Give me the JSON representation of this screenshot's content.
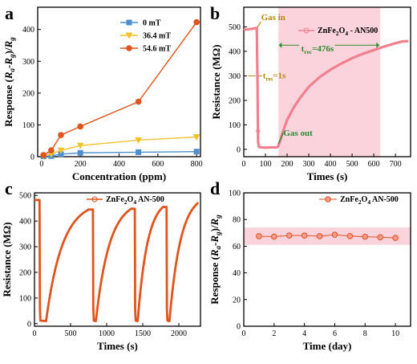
{
  "chart_data": [
    {
      "panel": "a",
      "type": "line",
      "xlabel": "Concentration (ppm)",
      "ylabel": "Response (Ra-Rg)/Rg",
      "xlim": [
        -20,
        820
      ],
      "ylim": [
        0,
        470
      ],
      "xticks": [
        "0",
        "200",
        "400",
        "600",
        "800"
      ],
      "yticks": [
        "0",
        "100",
        "200",
        "300",
        "400"
      ],
      "legend_position": "top-right",
      "series": [
        {
          "name": "0 mT",
          "color": "#4f8fd0",
          "marker": "square",
          "x": [
            10,
            50,
            100,
            200,
            500,
            800
          ],
          "y": [
            1,
            2,
            8,
            12,
            14,
            16
          ]
        },
        {
          "name": "36.4 mT",
          "color": "#f2c12e",
          "marker": "triangle",
          "x": [
            10,
            50,
            100,
            200,
            500,
            800
          ],
          "y": [
            2,
            8,
            20,
            35,
            52,
            62
          ]
        },
        {
          "name": "54.6 mT",
          "color": "#e0541e",
          "marker": "circle",
          "x": [
            10,
            50,
            100,
            200,
            500,
            800
          ],
          "y": [
            5,
            20,
            68,
            95,
            173,
            423
          ]
        }
      ]
    },
    {
      "panel": "b",
      "type": "line",
      "xlabel": "Times (s)",
      "ylabel": "Resistance (MΩ)",
      "xlim": [
        0,
        770
      ],
      "ylim": [
        -30,
        580
      ],
      "xticks": [
        "0",
        "100",
        "200",
        "300",
        "400",
        "500",
        "600",
        "700"
      ],
      "yticks": [
        "0",
        "100",
        "200",
        "300",
        "400",
        "500"
      ],
      "legend_position": "top-right",
      "series": [
        {
          "name": "ZnFe2O4 - AN500",
          "color": "#f08090",
          "x": [
            0,
            20,
            40,
            55,
            60,
            63,
            66,
            70,
            80,
            100,
            120,
            140,
            150,
            155,
            160,
            170,
            180,
            200,
            230,
            260,
            300,
            350,
            400,
            450,
            500,
            550,
            600,
            650,
            700,
            730,
            760
          ],
          "y": [
            488,
            490,
            492,
            495,
            494,
            300,
            30,
            10,
            8,
            7,
            8,
            8,
            8,
            9,
            15,
            40,
            70,
            120,
            170,
            210,
            255,
            295,
            325,
            350,
            372,
            390,
            405,
            420,
            433,
            440,
            442
          ]
        }
      ],
      "shade": {
        "x0": 160,
        "x1": 630
      },
      "annotations": [
        {
          "text": "Gas in",
          "x": 80,
          "y": 535
        },
        {
          "text": "t",
          "sub": "res",
          "after": "=1s",
          "x": 65,
          "y": 300
        },
        {
          "text": "t",
          "sub": "rec",
          "after": "=476s",
          "x": 330,
          "y": 395
        },
        {
          "text": "Gas out",
          "x": 185,
          "y": 55
        }
      ]
    },
    {
      "panel": "c",
      "type": "line",
      "xlabel": "Times (s)",
      "ylabel": "Resistance (MΩ)",
      "xlim": [
        0,
        2300
      ],
      "ylim": [
        -10,
        510
      ],
      "xticks": [
        "0",
        "500",
        "1000",
        "1500",
        "2000"
      ],
      "yticks": [
        "0",
        "100",
        "200",
        "300",
        "400",
        "500"
      ],
      "legend_position": "top-right",
      "series": [
        {
          "name": "ZnFe2O4 AN-500",
          "color": "#e0541e",
          "cycles": [
            {
              "start": 0,
              "baseline": 482,
              "drop": 70,
              "rec_end": 750,
              "end_val": 445,
              "first": true
            },
            {
              "start": 760,
              "baseline": 445,
              "drop": 810,
              "rec_end": 1340,
              "end_val": 448
            },
            {
              "start": 1350,
              "baseline": 448,
              "drop": 1390,
              "rec_end": 1780,
              "end_val": 455
            },
            {
              "start": 1790,
              "baseline": 455,
              "drop": 1830,
              "rec_end": 2270,
              "end_val": 472
            }
          ]
        }
      ]
    },
    {
      "panel": "d",
      "type": "scatter",
      "xlabel": "Time (day)",
      "ylabel": "Response (Ra-Rg)/Rg",
      "xlim": [
        0,
        11
      ],
      "ylim": [
        0,
        100
      ],
      "xticks": [
        "0",
        "2",
        "4",
        "6",
        "8",
        "10"
      ],
      "yticks": [
        "0",
        "20",
        "40",
        "60",
        "80",
        "100"
      ],
      "legend_position": "top-right",
      "band": [
        61,
        74
      ],
      "series": [
        {
          "name": "ZnFe2O4 AN-500",
          "color": "#e0541e",
          "x": [
            1,
            2,
            3,
            4,
            5,
            6,
            7,
            8,
            9,
            10
          ],
          "y": [
            67.5,
            67.2,
            68,
            68,
            67.5,
            68.6,
            67.6,
            67.1,
            66.7,
            66.2
          ]
        }
      ]
    }
  ],
  "labels": {
    "a": "a",
    "b": "b",
    "c": "c",
    "d": "d",
    "legend_a": [
      "0 mT",
      "36.4 mT",
      "54.6 mT"
    ],
    "legend_b_pre": "ZnFe",
    "legend_b_s1": "2",
    "legend_b_mid": "O",
    "legend_b_s2": "4",
    "legend_b_post": " - AN500",
    "legend_cd_pre": "ZnFe",
    "legend_cd_s1": "2",
    "legend_cd_mid": "O",
    "legend_cd_s2": "4",
    "legend_cd_post": " AN-500"
  }
}
